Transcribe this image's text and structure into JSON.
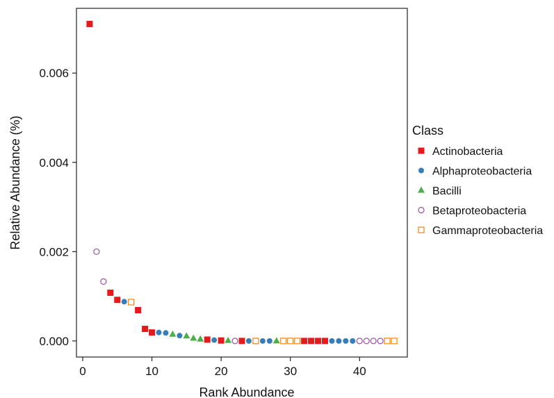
{
  "chart_data": {
    "type": "scatter",
    "title": "",
    "xlabel": "Rank Abundance",
    "ylabel": "Relative Abundance (%)",
    "xlim": [
      -0.9,
      46.9
    ],
    "ylim": [
      -0.00036,
      0.00745
    ],
    "xticks": [
      0,
      10,
      20,
      30,
      40
    ],
    "yticks": [
      0.0,
      0.002,
      0.004,
      0.006
    ],
    "ytick_labels": [
      "0.000",
      "0.002",
      "0.004",
      "0.006"
    ],
    "grid": false,
    "legend": {
      "title": "Class",
      "placement": "right",
      "entries": [
        {
          "name": "Actinobacteria",
          "color": "#e41a1c",
          "marker": "square-filled"
        },
        {
          "name": "Alphaproteobacteria",
          "color": "#377eb8",
          "marker": "circle-filled"
        },
        {
          "name": "Bacilli",
          "color": "#4daf4a",
          "marker": "triangle-filled"
        },
        {
          "name": "Betaproteobacteria",
          "color": "#984ea3",
          "marker": "circle-open"
        },
        {
          "name": "Gammaproteobacteria",
          "color": "#ff7f00",
          "marker": "square-open"
        }
      ]
    },
    "series": [
      {
        "name": "Actinobacteria",
        "x": [
          1,
          4,
          5,
          8,
          9,
          10,
          18,
          20,
          23,
          32,
          33,
          34,
          35
        ],
        "y": [
          0.0071,
          0.00108,
          0.00092,
          0.00069,
          0.00027,
          0.00019,
          3e-05,
          1e-05,
          0.0,
          0.0,
          0.0,
          0.0,
          0.0
        ]
      },
      {
        "name": "Alphaproteobacteria",
        "x": [
          6,
          11,
          12,
          14,
          19,
          24,
          26,
          27,
          36,
          37,
          38,
          39
        ],
        "y": [
          0.00088,
          0.00019,
          0.00018,
          0.00012,
          2e-05,
          0.0,
          0.0,
          0.0,
          0.0,
          0.0,
          0.0,
          0.0
        ]
      },
      {
        "name": "Bacilli",
        "x": [
          13,
          15,
          16,
          17,
          21,
          28
        ],
        "y": [
          0.00015,
          0.00011,
          6e-05,
          4e-05,
          1e-05,
          0.0
        ]
      },
      {
        "name": "Betaproteobacteria",
        "x": [
          2,
          3,
          22,
          40,
          41,
          42,
          43
        ],
        "y": [
          0.002,
          0.00133,
          0.0,
          0.0,
          0.0,
          0.0,
          0.0
        ]
      },
      {
        "name": "Gammaproteobacteria",
        "x": [
          7,
          25,
          29,
          30,
          31,
          44,
          45
        ],
        "y": [
          0.00087,
          0.0,
          0.0,
          0.0,
          0.0,
          0.0,
          0.0
        ]
      }
    ]
  }
}
